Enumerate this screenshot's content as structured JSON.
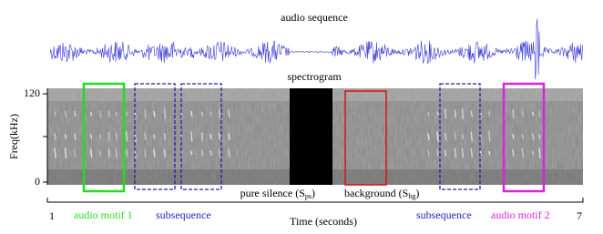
{
  "header": {
    "waveform_title": "audio sequence",
    "spectrogram_title": "spectrogram"
  },
  "y_axis": {
    "label": "Freq(kHz)",
    "ticks": [
      "120",
      "0"
    ]
  },
  "annotations": {
    "silence": {
      "text": "pure silence (S",
      "sub": "ps",
      "suffix": ")"
    },
    "background": {
      "text": "background (S",
      "sub": "bg",
      "suffix": ")"
    }
  },
  "x_axis": {
    "start": "1",
    "end": "7",
    "label": "Time (seconds)"
  },
  "legend": {
    "motif1": "audio motif 1",
    "subsequence1": "subsequence",
    "subsequence2": "subsequence",
    "motif2": "audio motif 2"
  }
}
